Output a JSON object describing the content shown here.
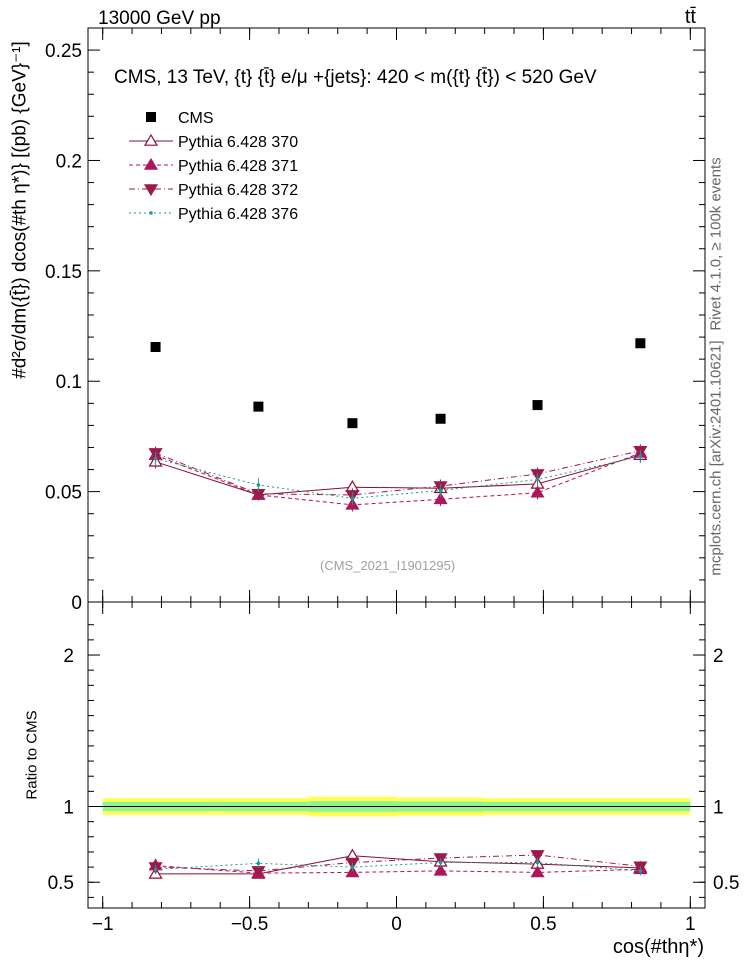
{
  "header": {
    "left": "13000 GeV pp",
    "right": "tt̄"
  },
  "side_text": {
    "rivet": "Rivet 4.1.0, ≥ 100k events",
    "site": "mcplots.cern.ch [arXiv:2401.10621]"
  },
  "watermark": "(CMS_2021_I1901295)",
  "colors": {
    "cms": "#000000",
    "p370": "#8b0f2c",
    "p371": "#b0145a",
    "p372": "#9c1a4a",
    "p376": "#1a9a9a",
    "band_outer": "#ffff55",
    "band_inner": "#8ef58e"
  },
  "chart_data": [
    {
      "type": "scatter",
      "title": "CMS, 13 TeV, {t} {t̄} e/μ +{jets}: 420 < m({t} {t̄}) < 520 GeV",
      "ylabel": "#d²σ/dm({t̄}) dcos(#th η*)} [(pb) {GeV}⁻¹]",
      "xlabel": "",
      "xlim": [
        -1.05,
        1.05
      ],
      "ylim": [
        0,
        0.26
      ],
      "yticks": [
        0,
        0.05,
        0.1,
        0.15,
        0.2,
        0.25
      ],
      "yticklabels": [
        "0",
        "0.05",
        "0.1",
        "0.15",
        "0.2",
        "0.25"
      ],
      "x": [
        -0.82,
        -0.47,
        -0.15,
        0.15,
        0.48,
        0.83
      ],
      "series": [
        {
          "name": "CMS",
          "marker": "square",
          "values": [
            0.1155,
            0.0885,
            0.081,
            0.083,
            0.0892,
            0.1172
          ]
        },
        {
          "name": "Pythia 6.428 370",
          "marker": "triangle-open",
          "line": "solid",
          "values": [
            0.0635,
            0.0485,
            0.052,
            0.0515,
            0.0535,
            0.0665
          ],
          "errors": [
            0.003,
            0.002,
            0.003,
            0.003,
            0.003,
            0.003
          ]
        },
        {
          "name": "Pythia 6.428 371",
          "marker": "triangle-filled",
          "line": "dashed",
          "values": [
            0.0665,
            0.0485,
            0.044,
            0.0465,
            0.0495,
            0.0675
          ],
          "errors": [
            0.003,
            0.002,
            0.003,
            0.003,
            0.003,
            0.003
          ]
        },
        {
          "name": "Pythia 6.428 372",
          "marker": "triangle-down",
          "line": "dashdot",
          "values": [
            0.0675,
            0.049,
            0.0485,
            0.0525,
            0.058,
            0.0685
          ],
          "errors": [
            0.003,
            0.002,
            0.003,
            0.003,
            0.003,
            0.003
          ]
        },
        {
          "name": "Pythia 6.428 376",
          "marker": "dot",
          "line": "dotted",
          "values": [
            0.065,
            0.053,
            0.047,
            0.0505,
            0.0555,
            0.066
          ],
          "errors": [
            0.003,
            0.003,
            0.003,
            0.003,
            0.003,
            0.003
          ]
        }
      ]
    },
    {
      "type": "scatter",
      "title": "",
      "ylabel": "Ratio to CMS",
      "xlabel": "cos(#thη*)",
      "xlim": [
        -1.05,
        1.05
      ],
      "ylim": [
        0.33,
        2.35
      ],
      "yticks": [
        0.5,
        1,
        2
      ],
      "yticklabels": [
        "0.5",
        "1",
        "2"
      ],
      "xticks": [
        -1,
        -0.5,
        0,
        0.5,
        1
      ],
      "xticklabels": [
        "−1",
        "−0.5",
        "0",
        "0.5",
        "1"
      ],
      "x": [
        -0.82,
        -0.47,
        -0.15,
        0.15,
        0.48,
        0.83
      ],
      "bands": {
        "edges": [
          -1,
          -0.64,
          -0.3,
          0,
          0.3,
          0.64,
          1
        ],
        "outer": [
          0.055,
          0.055,
          0.065,
          0.06,
          0.055,
          0.055
        ],
        "inner": [
          0.03,
          0.03,
          0.035,
          0.033,
          0.03,
          0.03
        ]
      },
      "series": [
        {
          "name": "Pythia 6.428 370",
          "values": [
            0.555,
            0.555,
            0.675,
            0.635,
            0.62,
            0.595
          ]
        },
        {
          "name": "Pythia 6.428 371",
          "values": [
            0.61,
            0.56,
            0.565,
            0.575,
            0.565,
            0.585
          ]
        },
        {
          "name": "Pythia 6.428 372",
          "values": [
            0.6,
            0.575,
            0.63,
            0.66,
            0.68,
            0.605
          ]
        },
        {
          "name": "Pythia 6.428 376",
          "values": [
            0.585,
            0.625,
            0.6,
            0.63,
            0.63,
            0.575
          ]
        }
      ]
    }
  ]
}
